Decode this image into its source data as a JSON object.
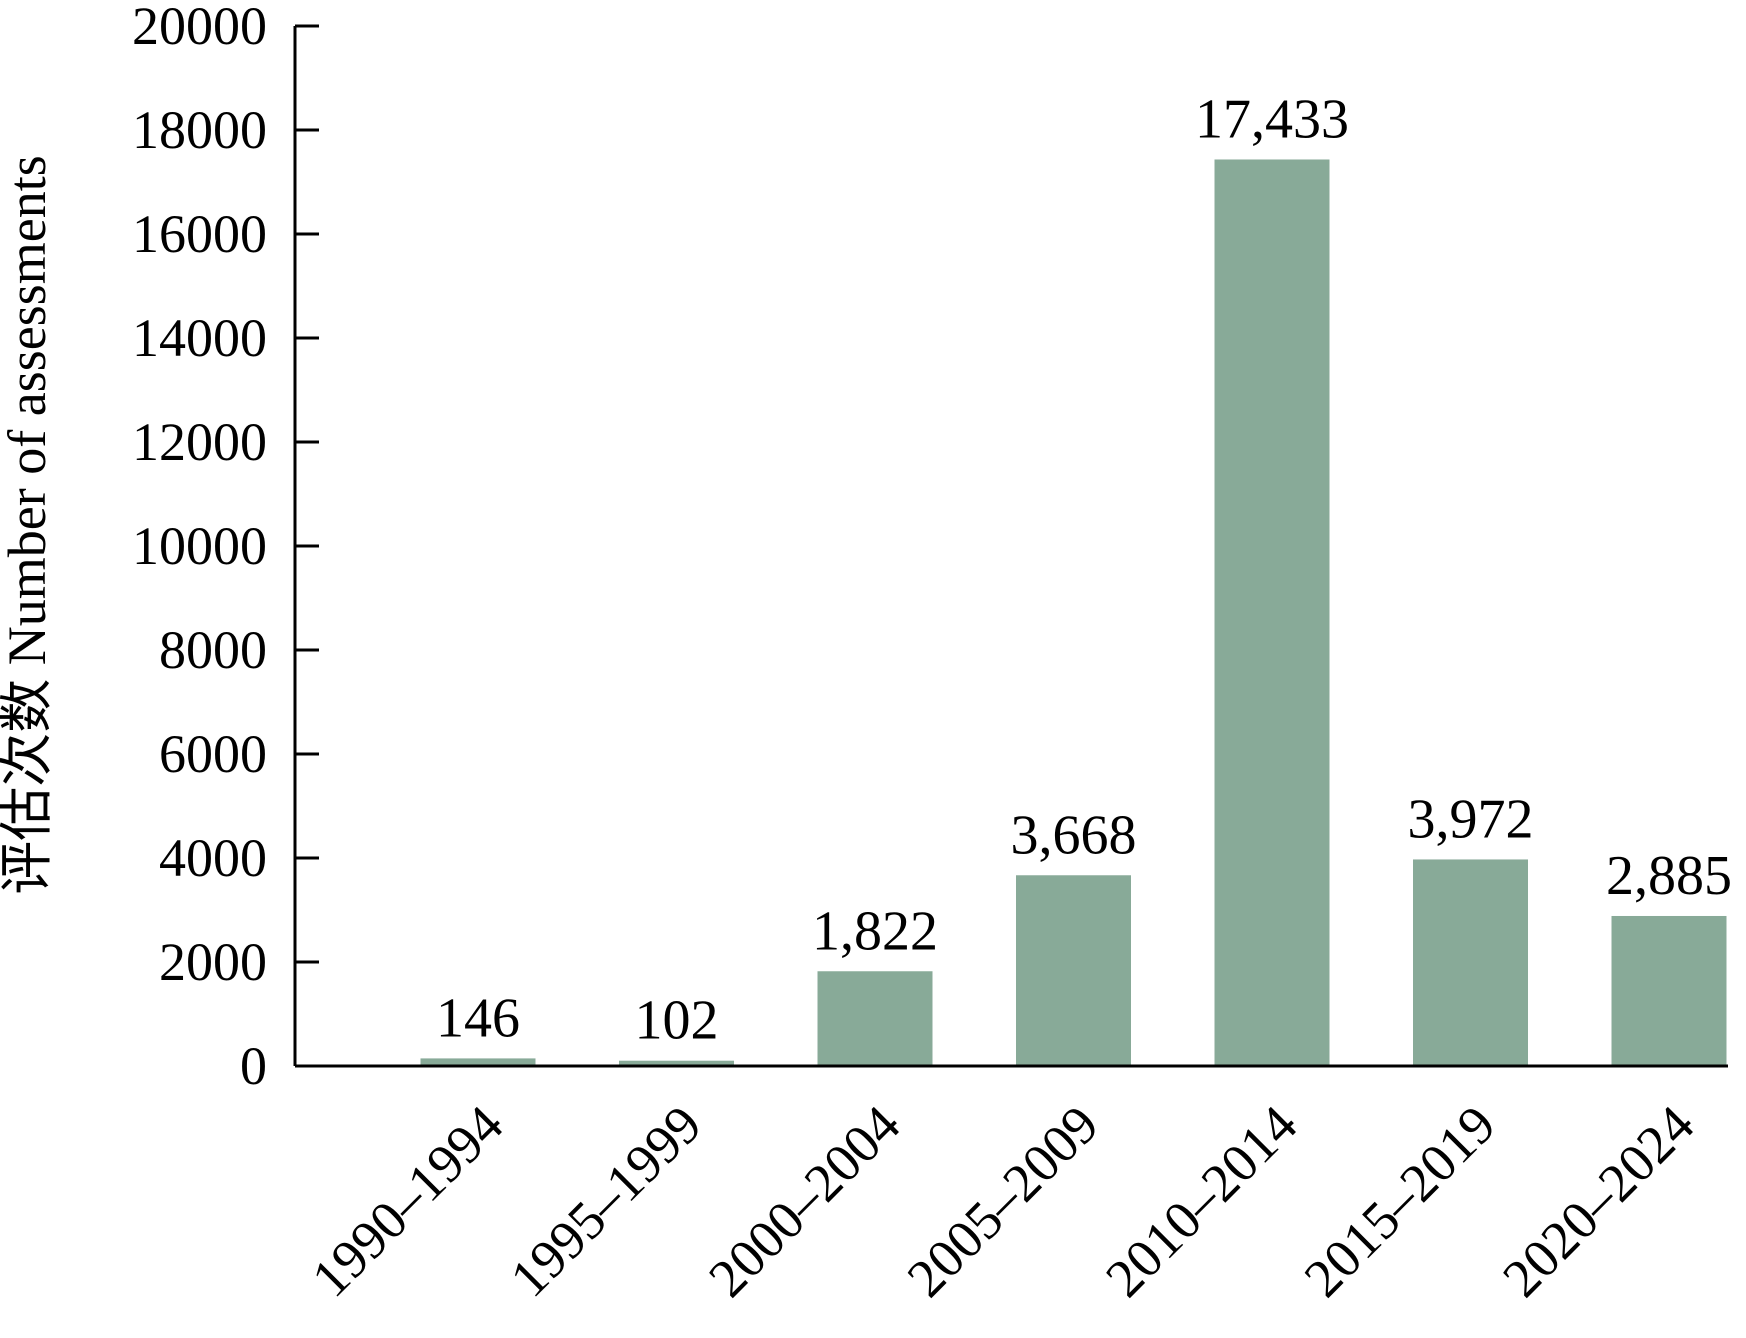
{
  "chart_data": {
    "type": "bar",
    "title": "",
    "xlabel": "",
    "ylabel": "评估次数 Number of assessments",
    "categories": [
      "1990–1994",
      "1995–1999",
      "2000–2004",
      "2005–2009",
      "2010–2014",
      "2015–2019",
      "2020–2024"
    ],
    "values": [
      146,
      102,
      1822,
      3668,
      17433,
      3972,
      2885
    ],
    "value_labels": [
      "146",
      "102",
      "1,822",
      "3,668",
      "17,433",
      "3,972",
      "2,885"
    ],
    "yticks": [
      "0",
      "2000",
      "4000",
      "6000",
      "8000",
      "10000",
      "12000",
      "14000",
      "16000",
      "18000",
      "20000"
    ],
    "ylim": [
      0,
      20000
    ],
    "grid": false,
    "legend": "none",
    "bar_color": "#88aa98",
    "axis_color": "#000000"
  }
}
